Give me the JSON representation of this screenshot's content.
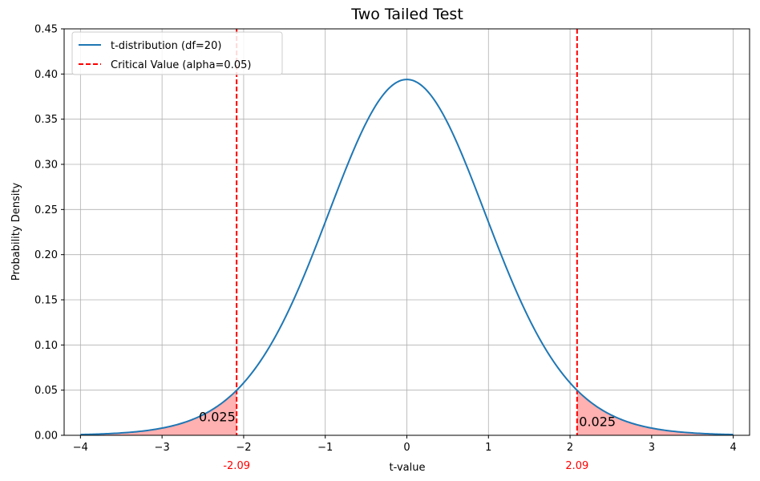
{
  "chart_data": {
    "type": "line",
    "title": "Two Tailed Test",
    "xlabel": "t-value",
    "ylabel": "Probability Density",
    "xlim": [
      -4.2,
      4.2
    ],
    "ylim": [
      0,
      0.45
    ],
    "xticks": [
      -4,
      -3,
      -2,
      -1,
      0,
      1,
      2,
      3,
      4
    ],
    "xtick_labels": [
      "−4",
      "−3",
      "−2",
      "−1",
      "0",
      "1",
      "2",
      "3",
      "4"
    ],
    "yticks": [
      0.0,
      0.05,
      0.1,
      0.15,
      0.2,
      0.25,
      0.3,
      0.35,
      0.4,
      0.45
    ],
    "ytick_labels": [
      "0.00",
      "0.05",
      "0.10",
      "0.15",
      "0.20",
      "0.25",
      "0.30",
      "0.35",
      "0.40",
      "0.45"
    ],
    "grid": true,
    "legend_position": "top-left",
    "series": [
      {
        "name": "t-distribution (df=20)",
        "kind": "curve",
        "df": 20,
        "x_range": [
          -4,
          4
        ],
        "color": "#1f77b4"
      }
    ],
    "critical_values": {
      "name": "Critical Value (alpha=0.05)",
      "values": [
        -2.086,
        2.086
      ],
      "labels": [
        "-2.09",
        "2.09"
      ],
      "color": "#ff0000"
    },
    "shaded_regions": [
      {
        "from": -4,
        "to": -2.086,
        "label": "0.025",
        "label_x": -2.55,
        "label_y": 0.0155
      },
      {
        "from": 2.086,
        "to": 4,
        "label": "0.025",
        "label_x": 2.11,
        "label_y": 0.01
      }
    ],
    "shade_color": "#ffb0b0"
  }
}
